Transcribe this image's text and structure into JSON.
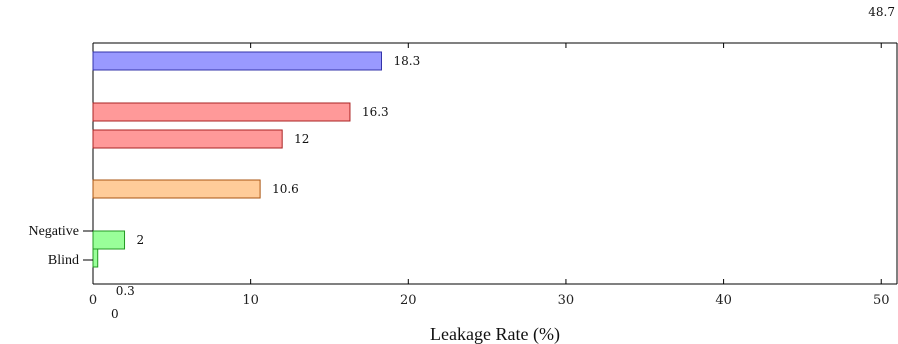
{
  "chart_data": {
    "type": "bar",
    "orientation": "horizontal",
    "xlabel": "Leakage Rate (%)",
    "xlim": [
      0,
      51
    ],
    "xticks": [
      0,
      10,
      20,
      30,
      40,
      50
    ],
    "bars": [
      {
        "category": "",
        "value": 48.7,
        "label": "48.7",
        "color": "#9999ff",
        "stroke": "#3333aa"
      },
      {
        "category": "",
        "value": 18.3,
        "label": "18.3",
        "color": "#9999ff",
        "stroke": "#3333aa"
      },
      {
        "category": "",
        "value": 16.3,
        "label": "16.3",
        "color": "#ff9999",
        "stroke": "#aa2222"
      },
      {
        "category": "",
        "value": 12,
        "label": "12",
        "color": "#ff9999",
        "stroke": "#aa2222"
      },
      {
        "category": "",
        "value": 10.6,
        "label": "10.6",
        "color": "#ffcc99",
        "stroke": "#aa5511"
      },
      {
        "category": "Negative",
        "value": 2,
        "label": "2",
        "color": "#99ff99",
        "stroke": "#229922"
      },
      {
        "category": "Blind",
        "value": 0.3,
        "label": "0.3",
        "color": "#99ff99",
        "stroke": "#229922"
      },
      {
        "category": "",
        "value": 0,
        "label": "0",
        "color": "#99ff99",
        "stroke": "#229922"
      }
    ],
    "grid": false,
    "legend": "none"
  }
}
